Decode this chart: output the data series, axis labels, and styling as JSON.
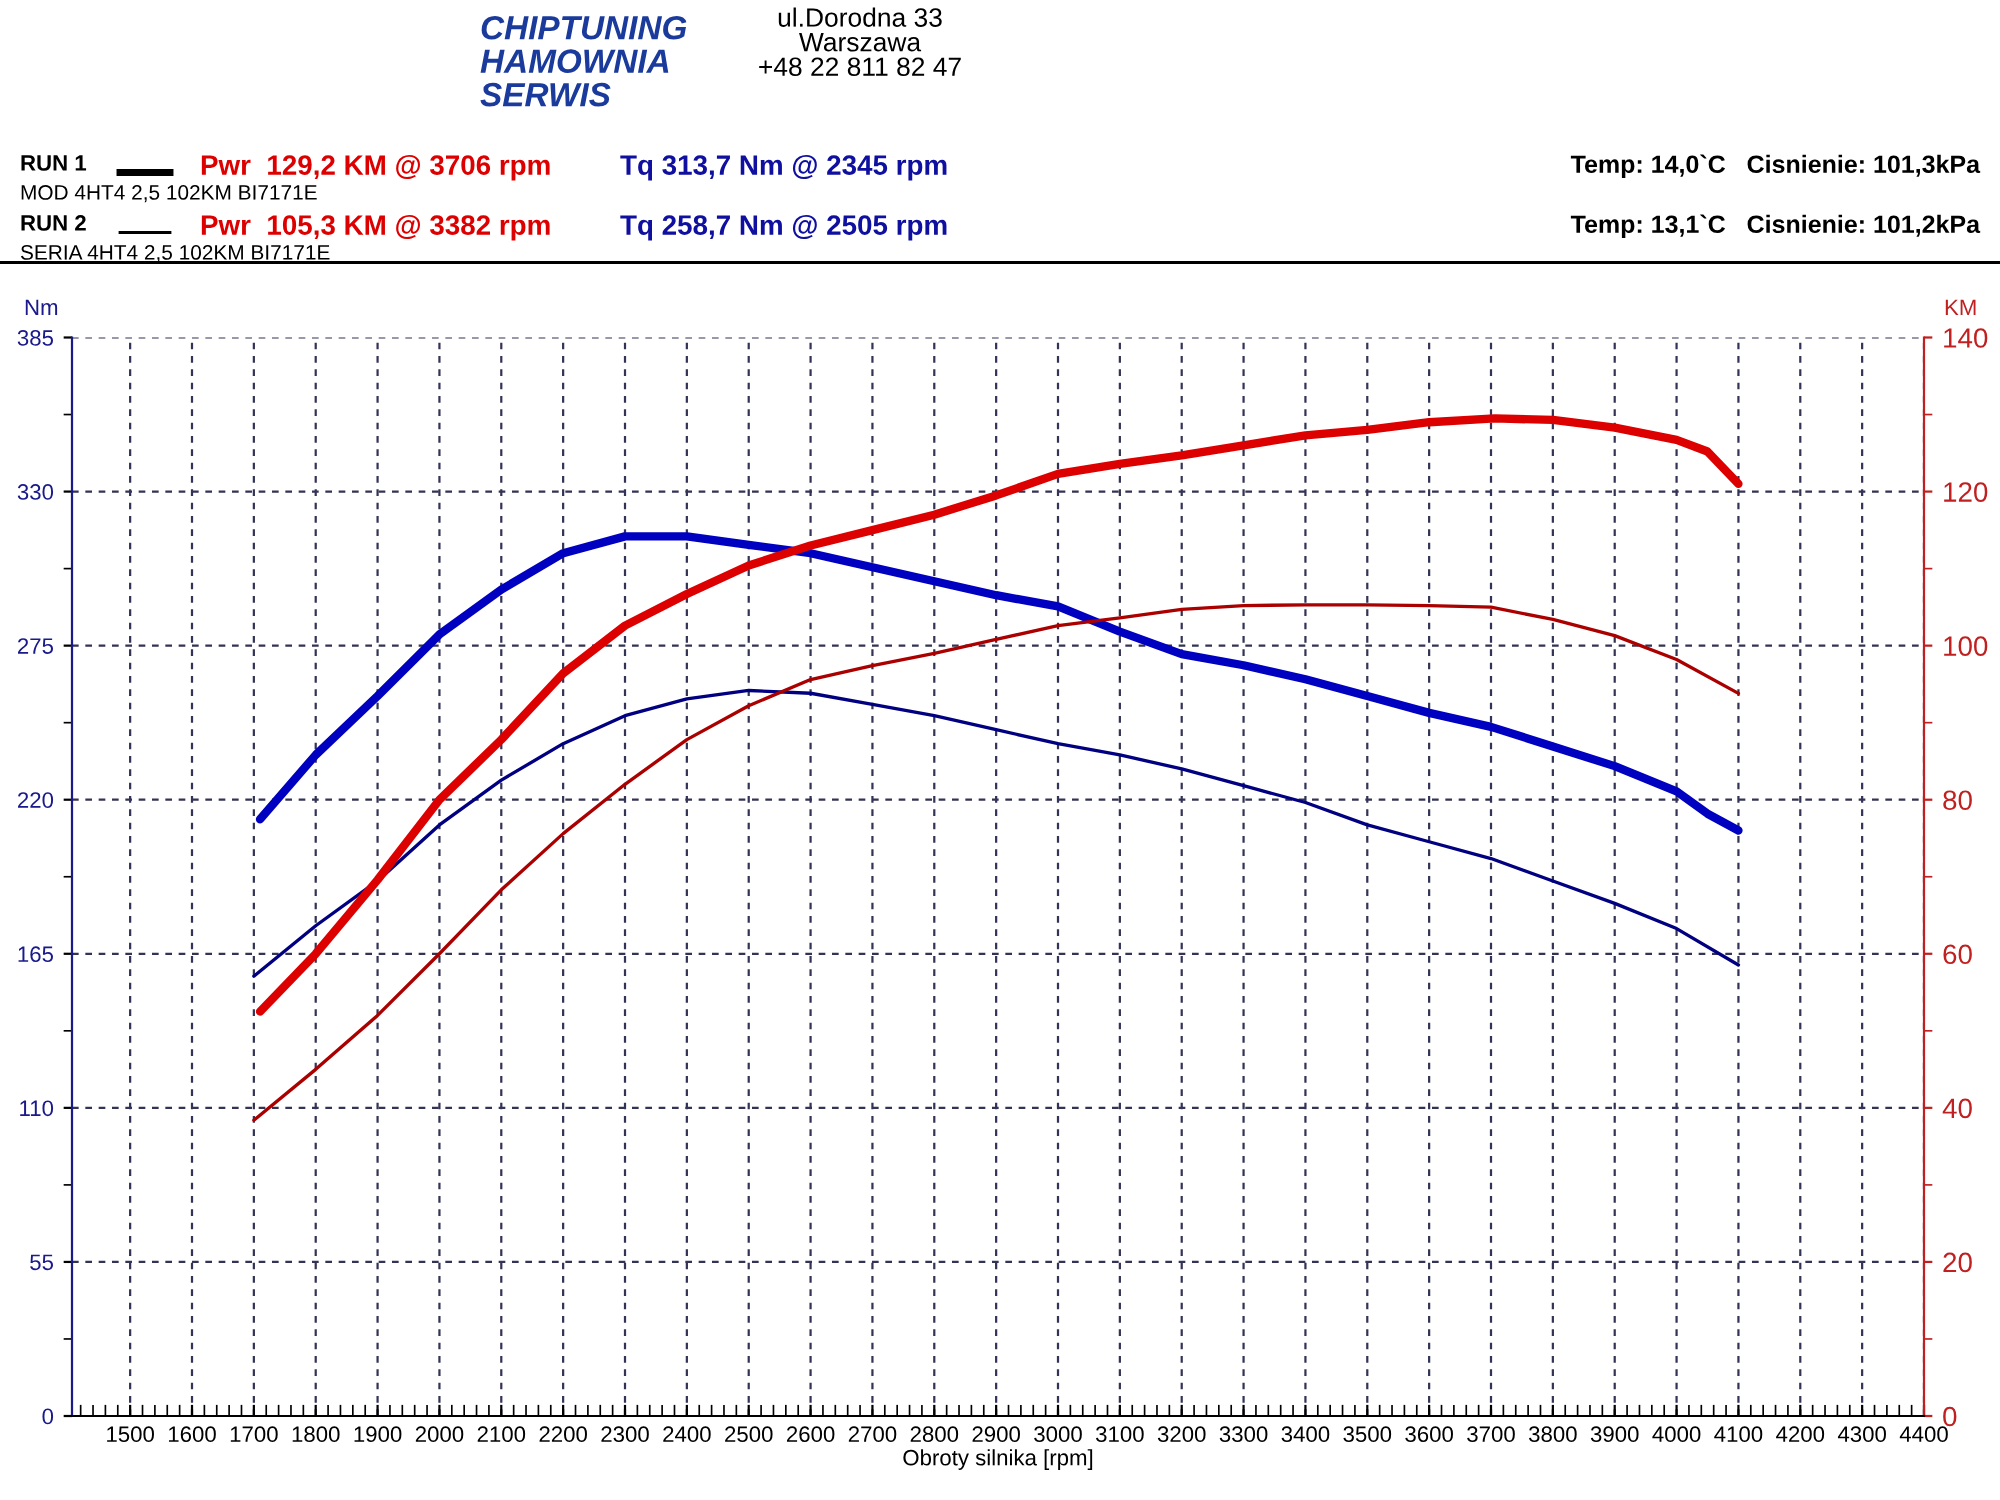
{
  "chart_data": {
    "type": "line",
    "xlabel": "Obroty silnika [rpm]",
    "ylabel": "Nm",
    "y2label": "KM",
    "annotations": [
      "CHIPTUNING\nHAMOWNIA\nSERWIS",
      "ul.Dorodna 33\nWarszawa\n+48 22 811 82 47",
      "RUN 1",
      "Pwr  129,2 KM @ 3706 rpm",
      "Tq 313,7 Nm @ 2345 rpm",
      "MOD 4HT4 2,5 102KM BI7171E",
      "Temp: 14,0`C   Cisnienie: 101,3kPa",
      "RUN 2",
      "Pwr  105,3 KM @ 3382 rpm",
      "Tq 258,7 Nm @ 2505 rpm",
      "SERIA 4HT4 2,5 102KM BI7171E",
      "Temp: 13,1`C   Cisnienie: 101,2kPa"
    ],
    "xlim": [
      1406,
      4400
    ],
    "xticks": [
      1500,
      1600,
      1700,
      1800,
      1900,
      2000,
      2100,
      2200,
      2300,
      2400,
      2500,
      2600,
      2700,
      2800,
      2900,
      3000,
      3100,
      3200,
      3300,
      3400,
      3500,
      3600,
      3700,
      3800,
      3900,
      4000,
      4100,
      4200,
      4300,
      4400
    ],
    "ylim": [
      0,
      385
    ],
    "yticks": [
      0,
      55,
      110,
      165,
      220,
      275,
      330,
      385
    ],
    "y2lim": [
      0,
      140
    ],
    "y2ticks": [
      0,
      20,
      40,
      60,
      80,
      100,
      120,
      140
    ],
    "grid": true,
    "line_style": "solid",
    "series": [
      {
        "color": "#0000c0",
        "x": [
          1710,
          1800,
          1900,
          2000,
          2100,
          2200,
          2300,
          2345,
          2400,
          2500,
          2600,
          2700,
          2800,
          2900,
          3000,
          3100,
          3200,
          3300,
          3400,
          3500,
          3600,
          3700,
          3800,
          3900,
          4000,
          4050,
          4100
        ],
        "values": [
          213,
          236,
          257,
          279,
          295,
          308,
          314,
          314,
          314,
          311,
          308,
          303,
          298,
          293,
          289,
          280,
          272,
          268,
          263,
          257,
          251,
          246,
          239,
          232,
          223,
          215,
          209
        ]
      },
      {
        "color": "#000080",
        "x": [
          1700,
          1800,
          1900,
          2000,
          2100,
          2200,
          2300,
          2400,
          2500,
          2600,
          2700,
          2800,
          2900,
          3000,
          3100,
          3200,
          3300,
          3400,
          3500,
          3600,
          3700,
          3800,
          3900,
          4000,
          4100
        ],
        "values": [
          157,
          175,
          191,
          211,
          227,
          240,
          250,
          256,
          259,
          258,
          254,
          250,
          245,
          240,
          236,
          231,
          225,
          219,
          211,
          205,
          199,
          191,
          183,
          174,
          161
        ]
      },
      {
        "color": "#dd0000",
        "axis": "y2",
        "x": [
          1710,
          1800,
          1900,
          2000,
          2100,
          2200,
          2300,
          2400,
          2500,
          2600,
          2700,
          2800,
          2900,
          3000,
          3100,
          3200,
          3300,
          3400,
          3500,
          3600,
          3706,
          3800,
          3900,
          4000,
          4050,
          4100
        ],
        "values": [
          52.5,
          60,
          69.6,
          80,
          87.8,
          96.4,
          102.6,
          106.7,
          110.4,
          113,
          115,
          117,
          119.5,
          122.3,
          123.6,
          124.7,
          126,
          127.3,
          128,
          129,
          129.5,
          129.3,
          128.3,
          126.7,
          125.2,
          121
        ]
      },
      {
        "color": "#aa0000",
        "axis": "y2",
        "x": [
          1700,
          1800,
          1900,
          2000,
          2100,
          2200,
          2300,
          2400,
          2500,
          2600,
          2700,
          2800,
          2900,
          3000,
          3100,
          3200,
          3300,
          3400,
          3500,
          3600,
          3700,
          3800,
          3900,
          4000,
          4100
        ],
        "values": [
          38.4,
          45,
          52,
          60,
          68.3,
          75.6,
          82,
          87.8,
          92.2,
          95.6,
          97.4,
          99,
          100.8,
          102.6,
          103.6,
          104.7,
          105.2,
          105.3,
          105.3,
          105.2,
          105,
          103.4,
          101.3,
          98.2,
          93.8
        ]
      }
    ]
  }
}
